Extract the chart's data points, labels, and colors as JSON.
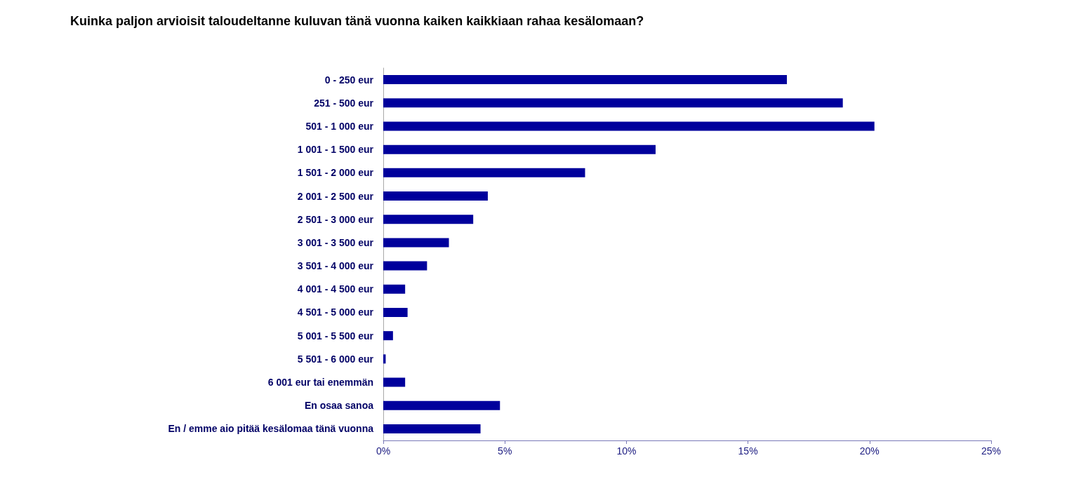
{
  "chart_data": {
    "type": "bar",
    "orientation": "horizontal",
    "title": "Kuinka paljon arvioisit taloudeltanne kuluvan tänä vuonna kaiken kaikkiaan rahaa kesälomaan?",
    "categories": [
      "0 - 250 eur",
      "251 - 500 eur",
      "501 - 1 000 eur",
      "1 001 - 1 500 eur",
      "1 501 - 2 000 eur",
      "2 001 - 2 500 eur",
      "2 501 - 3 000 eur",
      "3 001 - 3 500 eur",
      "3 501 - 4 000 eur",
      "4 001 - 4 500 eur",
      "4 501 - 5 000 eur",
      "5 001 - 5 500 eur",
      "5 501 - 6 000 eur",
      "6 001 eur tai enemmän",
      "En osaa sanoa",
      "En / emme aio pitää kesälomaa tänä vuonna"
    ],
    "values": [
      16.6,
      18.9,
      20.2,
      11.2,
      8.3,
      4.3,
      3.7,
      2.7,
      1.8,
      0.9,
      1.0,
      0.4,
      0.1,
      0.9,
      4.8,
      4.0
    ],
    "color": "#00009c",
    "xlim": [
      0,
      25
    ],
    "xticks": [
      {
        "value": 0,
        "label": "0%"
      },
      {
        "value": 5,
        "label": "5%"
      },
      {
        "value": 10,
        "label": "10%"
      },
      {
        "value": 15,
        "label": "15%"
      },
      {
        "value": 20,
        "label": "20%"
      },
      {
        "value": 25,
        "label": "25%"
      }
    ],
    "grid": false
  }
}
